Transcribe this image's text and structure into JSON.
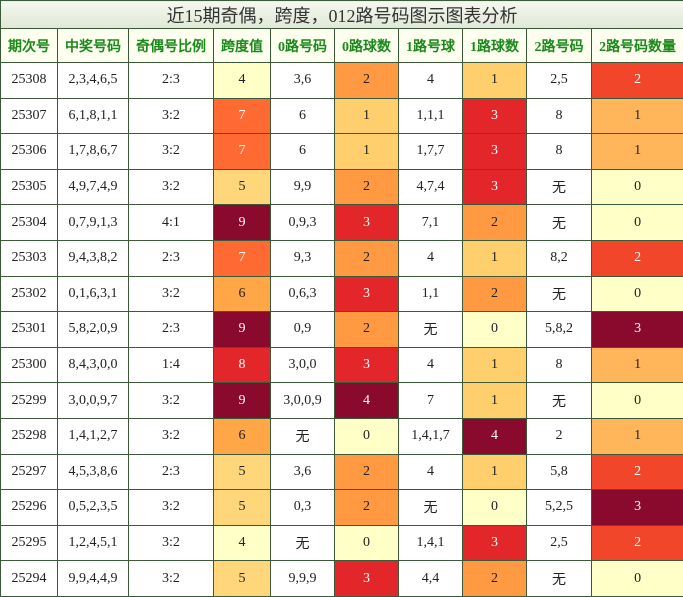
{
  "title": "近15期奇偶，跨度，012路号码图示图表分析",
  "table": {
    "header": [
      "期次号",
      "中奖号码",
      "奇偶号比例",
      "跨度值",
      "0路号码",
      "0路球数",
      "1路号球",
      "1路球数",
      "2路号码",
      "2路号码数量"
    ],
    "rows": [
      [
        "25308",
        "2,3,4,6,5",
        "2:3",
        "4",
        "3,6",
        "2",
        "4",
        "1",
        "2,5",
        "2"
      ],
      [
        "25307",
        "6,1,8,1,1",
        "3:2",
        "7",
        "6",
        "1",
        "1,1,1",
        "3",
        "8",
        "1"
      ],
      [
        "25306",
        "1,7,8,6,7",
        "3:2",
        "7",
        "6",
        "1",
        "1,7,7",
        "3",
        "8",
        "1"
      ],
      [
        "25305",
        "4,9,7,4,9",
        "3:2",
        "5",
        "9,9",
        "2",
        "4,7,4",
        "3",
        "无",
        "0"
      ],
      [
        "25304",
        "0,7,9,1,3",
        "4:1",
        "9",
        "0,9,3",
        "3",
        "7,1",
        "2",
        "无",
        "0"
      ],
      [
        "25303",
        "9,4,3,8,2",
        "2:3",
        "7",
        "9,3",
        "2",
        "4",
        "1",
        "8,2",
        "2"
      ],
      [
        "25302",
        "0,1,6,3,1",
        "3:2",
        "6",
        "0,6,3",
        "3",
        "1,1",
        "2",
        "无",
        "0"
      ],
      [
        "25301",
        "5,8,2,0,9",
        "2:3",
        "9",
        "0,9",
        "2",
        "无",
        "0",
        "5,8,2",
        "3"
      ],
      [
        "25300",
        "8,4,3,0,0",
        "1:4",
        "8",
        "3,0,0",
        "3",
        "4",
        "1",
        "8",
        "1"
      ],
      [
        "25299",
        "3,0,0,9,7",
        "3:2",
        "9",
        "3,0,0,9",
        "4",
        "7",
        "1",
        "无",
        "0"
      ],
      [
        "25298",
        "1,4,1,2,7",
        "3:2",
        "6",
        "无",
        "0",
        "1,4,1,7",
        "4",
        "2",
        "1"
      ],
      [
        "25297",
        "4,5,3,8,6",
        "2:3",
        "5",
        "3,6",
        "2",
        "4",
        "1",
        "5,8",
        "2"
      ],
      [
        "25296",
        "0,5,2,3,5",
        "3:2",
        "5",
        "0,3",
        "2",
        "无",
        "0",
        "5,2,5",
        "3"
      ],
      [
        "25295",
        "1,2,4,5,1",
        "3:2",
        "4",
        "无",
        "0",
        "1,4,1",
        "3",
        "2,5",
        "2"
      ],
      [
        "25294",
        "9,9,4,4,9",
        "3:2",
        "5",
        "9,9,9",
        "3",
        "4,4",
        "2",
        "无",
        "0"
      ]
    ]
  }
}
